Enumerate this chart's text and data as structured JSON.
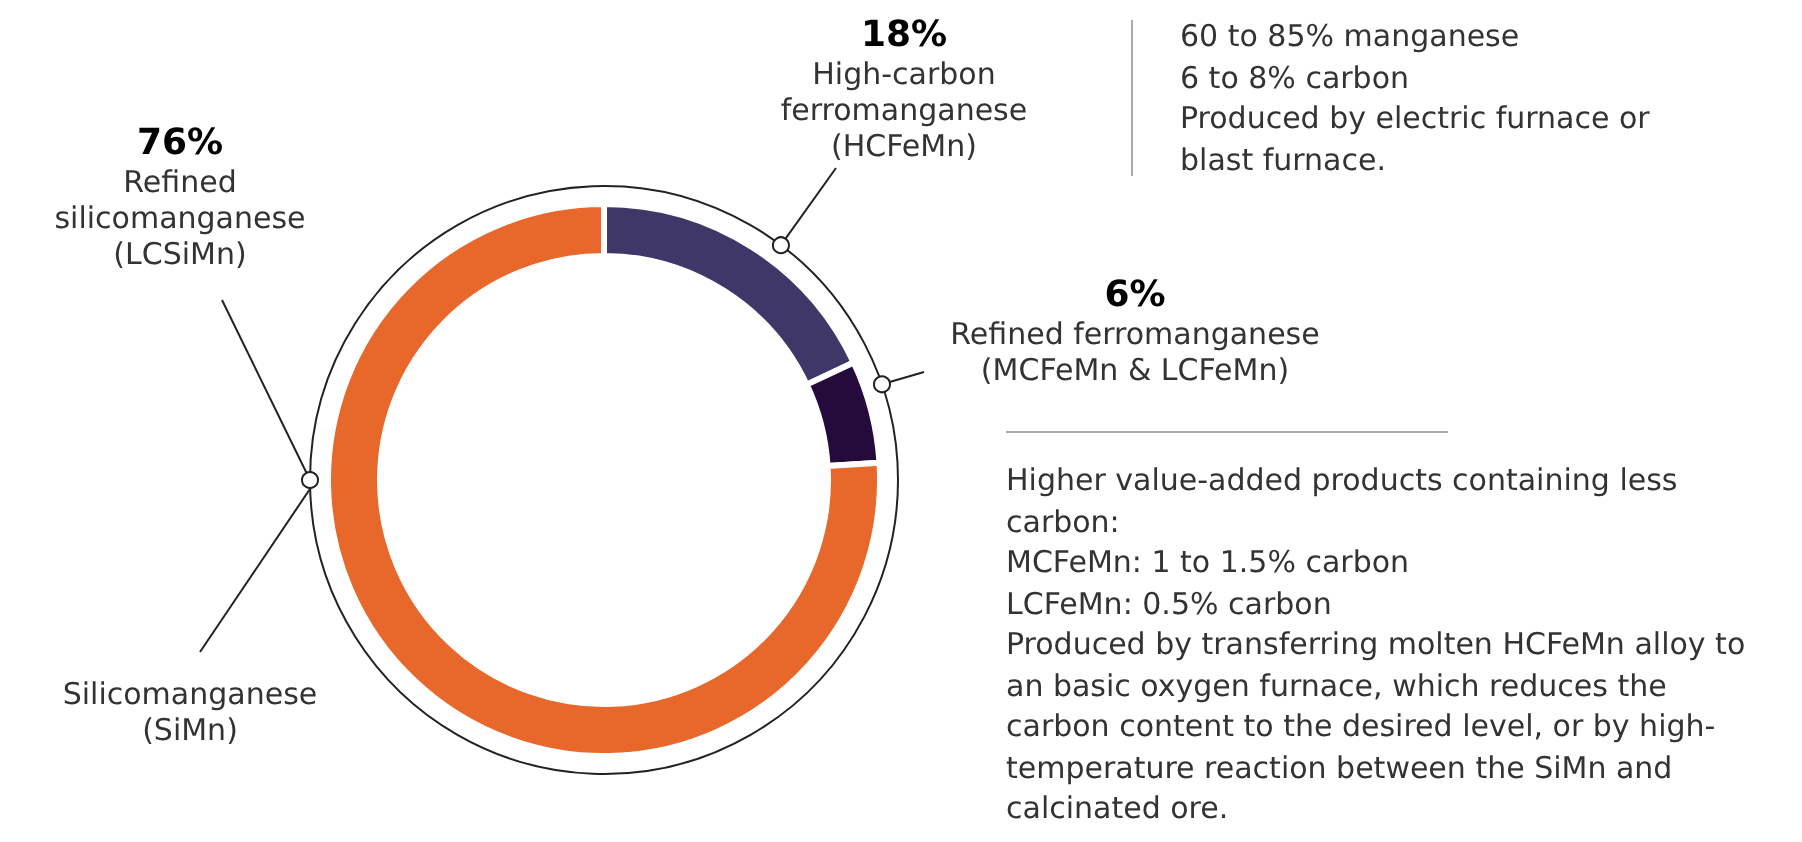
{
  "chart_data": {
    "type": "donut",
    "categories": [
      "High-carbon ferromanganese (HCFeMn)",
      "Refined ferromanganese (MCFeMn & LCFeMn)",
      "Refined silicomanganese (LCSiMn)"
    ],
    "values": [
      18,
      6,
      76
    ],
    "value_labels": [
      "18%",
      "6%",
      "76%"
    ],
    "colors": [
      "#3f3768",
      "#250a3c",
      "#e8672a"
    ],
    "annotations": [
      "Silicomanganese (SiMn)",
      "60 to 85% manganese\n6 to 8% carbon\nProduced by electric furnace or blast furnace.",
      "Higher value-added products containing less carbon:\nMCFeMn: 1 to 1.5% carbon\nLCFeMn: 0.5% carbon\nProduced by transferring molten HCFeMn alloy to an basic oxygen furnace, which reduces the carbon content to the desired level, or by high-temperature reaction between the SiMn and calcinated ore."
    ],
    "legend": false
  }
}
